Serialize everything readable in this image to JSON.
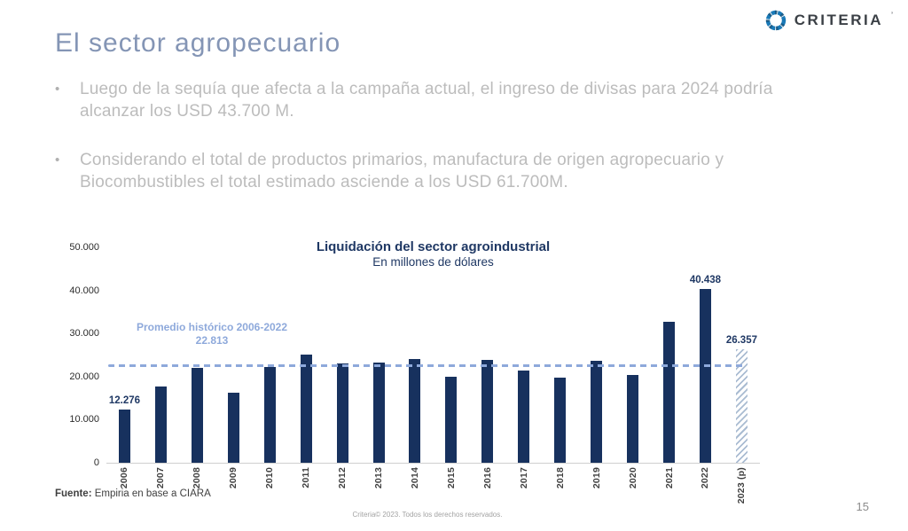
{
  "slide": {
    "title": "El sector agropecuario",
    "bullets": [
      "Luego de la sequía que afecta a la campaña actual, el ingreso de divisas para 2024 podría alcanzar los USD 43.700 M.",
      "Considerando el total de productos primarios, manufactura de origen agropecuario y Biocombustibles el total estimado asciende a los USD 61.700M."
    ],
    "logo_text": "CRITERIA",
    "logo_mark": "’",
    "source_label": "Fuente:",
    "source_text": " Empiria en base a CIARA",
    "footer": "Criteria© 2023. Todos los derechos reservados.",
    "page_number": "15"
  },
  "chart_data": {
    "type": "bar",
    "title": "Liquidación del sector agroindustrial",
    "subtitle": "En millones de dólares",
    "categories": [
      "2006",
      "2007",
      "2008",
      "2009",
      "2010",
      "2011",
      "2012",
      "2013",
      "2014",
      "2015",
      "2016",
      "2017",
      "2018",
      "2019",
      "2020",
      "2021",
      "2022",
      "2023 (p)"
    ],
    "values": [
      12276,
      17700,
      22100,
      16300,
      22200,
      25100,
      23000,
      23200,
      24100,
      20000,
      23900,
      21400,
      19700,
      23700,
      20300,
      32800,
      40438,
      26357
    ],
    "labels": [
      "12.276",
      "",
      "",
      "",
      "",
      "",
      "",
      "",
      "",
      "",
      "",
      "",
      "",
      "",
      "",
      "",
      "40.438",
      "26.357"
    ],
    "last_bar_hatched": true,
    "average_line": {
      "value": 22813,
      "label_line1": "Promedio histórico 2006-2022",
      "label_line2": "22.813"
    },
    "ylim": [
      0,
      50000
    ],
    "yticks": [
      "50.000",
      "40.000",
      "30.000",
      "20.000",
      "10.000",
      "0"
    ],
    "xlabel": "",
    "ylabel": "",
    "grid": false,
    "legend": "none",
    "colors": {
      "bar": "#17315e",
      "hatch": "#aabcd2",
      "average_line": "#8ea9db",
      "chart_title": "#1f3864",
      "value_label": "#1f3864",
      "slide_title": "#8495b5",
      "body_text": "#bcbcbc"
    }
  }
}
